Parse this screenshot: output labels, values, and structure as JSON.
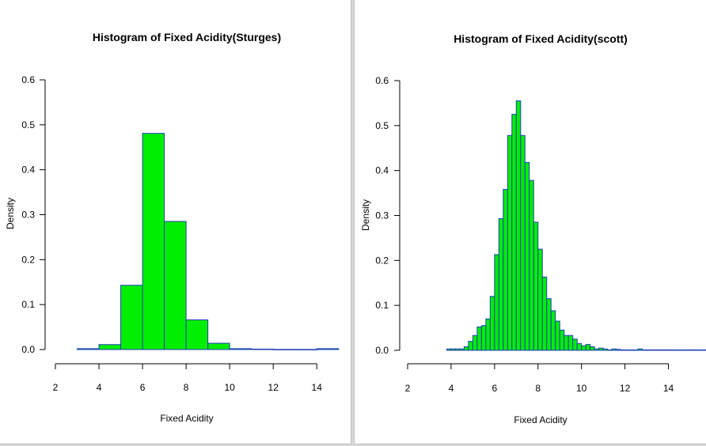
{
  "chart_data": [
    {
      "type": "bar",
      "title": "Histogram of Fixed Acidity(Sturges)",
      "xlabel": "Fixed Acidity",
      "ylabel": "Density",
      "xlim": [
        2,
        14.5
      ],
      "ylim": [
        0,
        0.6
      ],
      "x_ticks": [
        2,
        4,
        6,
        8,
        10,
        12,
        14
      ],
      "y_ticks": [
        "0.0",
        "0.1",
        "0.2",
        "0.3",
        "0.4",
        "0.5",
        "0.6"
      ],
      "bin_edges": [
        3,
        4,
        5,
        6,
        7,
        8,
        9,
        10,
        11,
        12,
        13,
        14,
        15
      ],
      "values": [
        0.002,
        0.011,
        0.143,
        0.481,
        0.285,
        0.066,
        0.014,
        0.002,
        0.001,
        0.0003,
        0.0002,
        0.002
      ],
      "bar_fill": "#00ee00",
      "bar_stroke": "#1f3fbf",
      "grid": false
    },
    {
      "type": "bar",
      "title": "Histogram of Fixed Acidity(scott)",
      "xlabel": "Fixed Acidity",
      "ylabel": "Density",
      "xlim": [
        2,
        14.2
      ],
      "ylim": [
        0,
        0.6
      ],
      "x_ticks": [
        2,
        4,
        6,
        8,
        10,
        12,
        14
      ],
      "y_ticks": [
        "0.0",
        "0.1",
        "0.2",
        "0.3",
        "0.4",
        "0.5",
        "0.6"
      ],
      "bin_start": 3.8,
      "bin_width": 0.2,
      "values": [
        0.003,
        0.003,
        0.003,
        0.003,
        0.008,
        0.02,
        0.033,
        0.052,
        0.055,
        0.07,
        0.12,
        0.213,
        0.293,
        0.358,
        0.478,
        0.525,
        0.555,
        0.478,
        0.418,
        0.378,
        0.285,
        0.225,
        0.163,
        0.115,
        0.088,
        0.065,
        0.045,
        0.033,
        0.033,
        0.025,
        0.015,
        0.01,
        0.013,
        0.008,
        0.003,
        0.005,
        0.003,
        0.001,
        0.003,
        0.002,
        0.001,
        0.001,
        0.001,
        0.001,
        0.003,
        0.001,
        0.001,
        0.001,
        0.001,
        0.001,
        0.001,
        0.001,
        0.001,
        0.001,
        0.001,
        0.001,
        0.001,
        0.001,
        0.001,
        0.001,
        0.001,
        0.001,
        0.003
      ],
      "bar_fill": "#00ee00",
      "bar_stroke": "#1f3fbf",
      "grid": false
    }
  ]
}
